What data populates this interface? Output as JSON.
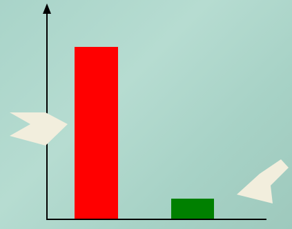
{
  "chart_data": {
    "type": "bar",
    "categories": [
      "",
      ""
    ],
    "values": [
      100,
      12
    ],
    "colors": [
      "#ff0000",
      "#008000"
    ],
    "title": "",
    "xlabel": "",
    "ylabel": "",
    "ylim": [
      0,
      120
    ],
    "grid": false,
    "legend": "none",
    "axis_color": "#000000"
  },
  "annotations": [
    {
      "name": "pointer-arrow-left",
      "direction": "right",
      "color": "#f2eedd"
    },
    {
      "name": "pointer-arrow-right",
      "direction": "down-left",
      "color": "#f2eedd"
    }
  ]
}
